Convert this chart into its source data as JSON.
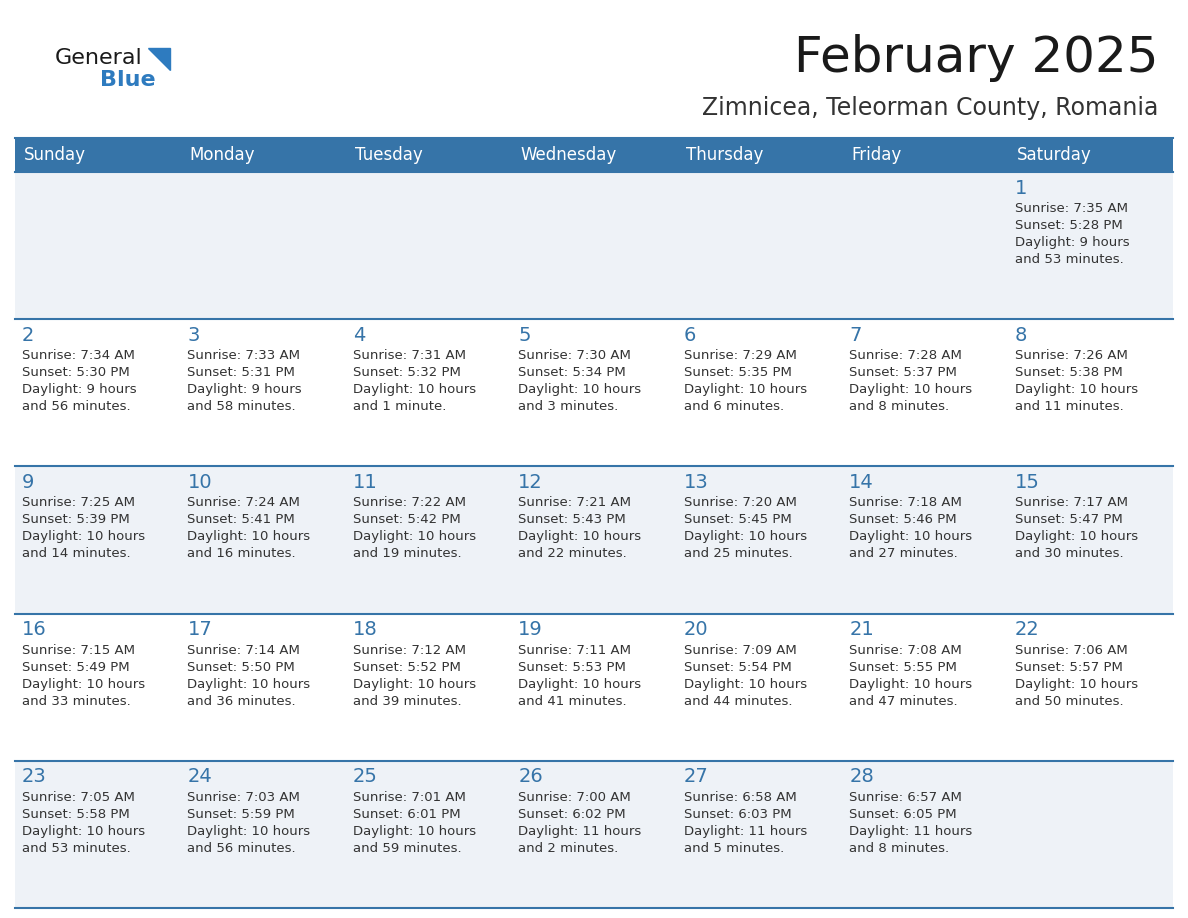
{
  "title": "February 2025",
  "subtitle": "Zimnicea, Teleorman County, Romania",
  "days_of_week": [
    "Sunday",
    "Monday",
    "Tuesday",
    "Wednesday",
    "Thursday",
    "Friday",
    "Saturday"
  ],
  "header_bg": "#3674a8",
  "header_text": "#ffffff",
  "cell_bg_odd": "#eef2f7",
  "cell_bg_white": "#ffffff",
  "border_color": "#3674a8",
  "day_num_color": "#3674a8",
  "text_color": "#333333",
  "title_color": "#1a1a1a",
  "subtitle_color": "#333333",
  "logo_general_color": "#1a1a1a",
  "logo_blue_color": "#2e7bbf",
  "calendar": [
    [
      null,
      null,
      null,
      null,
      null,
      null,
      1
    ],
    [
      2,
      3,
      4,
      5,
      6,
      7,
      8
    ],
    [
      9,
      10,
      11,
      12,
      13,
      14,
      15
    ],
    [
      16,
      17,
      18,
      19,
      20,
      21,
      22
    ],
    [
      23,
      24,
      25,
      26,
      27,
      28,
      null
    ]
  ],
  "cell_data": {
    "1": {
      "sunrise": "7:35 AM",
      "sunset": "5:28 PM",
      "daylight_h": "9 hours",
      "daylight_m": "and 53 minutes."
    },
    "2": {
      "sunrise": "7:34 AM",
      "sunset": "5:30 PM",
      "daylight_h": "9 hours",
      "daylight_m": "and 56 minutes."
    },
    "3": {
      "sunrise": "7:33 AM",
      "sunset": "5:31 PM",
      "daylight_h": "9 hours",
      "daylight_m": "and 58 minutes."
    },
    "4": {
      "sunrise": "7:31 AM",
      "sunset": "5:32 PM",
      "daylight_h": "10 hours",
      "daylight_m": "and 1 minute."
    },
    "5": {
      "sunrise": "7:30 AM",
      "sunset": "5:34 PM",
      "daylight_h": "10 hours",
      "daylight_m": "and 3 minutes."
    },
    "6": {
      "sunrise": "7:29 AM",
      "sunset": "5:35 PM",
      "daylight_h": "10 hours",
      "daylight_m": "and 6 minutes."
    },
    "7": {
      "sunrise": "7:28 AM",
      "sunset": "5:37 PM",
      "daylight_h": "10 hours",
      "daylight_m": "and 8 minutes."
    },
    "8": {
      "sunrise": "7:26 AM",
      "sunset": "5:38 PM",
      "daylight_h": "10 hours",
      "daylight_m": "and 11 minutes."
    },
    "9": {
      "sunrise": "7:25 AM",
      "sunset": "5:39 PM",
      "daylight_h": "10 hours",
      "daylight_m": "and 14 minutes."
    },
    "10": {
      "sunrise": "7:24 AM",
      "sunset": "5:41 PM",
      "daylight_h": "10 hours",
      "daylight_m": "and 16 minutes."
    },
    "11": {
      "sunrise": "7:22 AM",
      "sunset": "5:42 PM",
      "daylight_h": "10 hours",
      "daylight_m": "and 19 minutes."
    },
    "12": {
      "sunrise": "7:21 AM",
      "sunset": "5:43 PM",
      "daylight_h": "10 hours",
      "daylight_m": "and 22 minutes."
    },
    "13": {
      "sunrise": "7:20 AM",
      "sunset": "5:45 PM",
      "daylight_h": "10 hours",
      "daylight_m": "and 25 minutes."
    },
    "14": {
      "sunrise": "7:18 AM",
      "sunset": "5:46 PM",
      "daylight_h": "10 hours",
      "daylight_m": "and 27 minutes."
    },
    "15": {
      "sunrise": "7:17 AM",
      "sunset": "5:47 PM",
      "daylight_h": "10 hours",
      "daylight_m": "and 30 minutes."
    },
    "16": {
      "sunrise": "7:15 AM",
      "sunset": "5:49 PM",
      "daylight_h": "10 hours",
      "daylight_m": "and 33 minutes."
    },
    "17": {
      "sunrise": "7:14 AM",
      "sunset": "5:50 PM",
      "daylight_h": "10 hours",
      "daylight_m": "and 36 minutes."
    },
    "18": {
      "sunrise": "7:12 AM",
      "sunset": "5:52 PM",
      "daylight_h": "10 hours",
      "daylight_m": "and 39 minutes."
    },
    "19": {
      "sunrise": "7:11 AM",
      "sunset": "5:53 PM",
      "daylight_h": "10 hours",
      "daylight_m": "and 41 minutes."
    },
    "20": {
      "sunrise": "7:09 AM",
      "sunset": "5:54 PM",
      "daylight_h": "10 hours",
      "daylight_m": "and 44 minutes."
    },
    "21": {
      "sunrise": "7:08 AM",
      "sunset": "5:55 PM",
      "daylight_h": "10 hours",
      "daylight_m": "and 47 minutes."
    },
    "22": {
      "sunrise": "7:06 AM",
      "sunset": "5:57 PM",
      "daylight_h": "10 hours",
      "daylight_m": "and 50 minutes."
    },
    "23": {
      "sunrise": "7:05 AM",
      "sunset": "5:58 PM",
      "daylight_h": "10 hours",
      "daylight_m": "and 53 minutes."
    },
    "24": {
      "sunrise": "7:03 AM",
      "sunset": "5:59 PM",
      "daylight_h": "10 hours",
      "daylight_m": "and 56 minutes."
    },
    "25": {
      "sunrise": "7:01 AM",
      "sunset": "6:01 PM",
      "daylight_h": "10 hours",
      "daylight_m": "and 59 minutes."
    },
    "26": {
      "sunrise": "7:00 AM",
      "sunset": "6:02 PM",
      "daylight_h": "11 hours",
      "daylight_m": "and 2 minutes."
    },
    "27": {
      "sunrise": "6:58 AM",
      "sunset": "6:03 PM",
      "daylight_h": "11 hours",
      "daylight_m": "and 5 minutes."
    },
    "28": {
      "sunrise": "6:57 AM",
      "sunset": "6:05 PM",
      "daylight_h": "11 hours",
      "daylight_m": "and 8 minutes."
    }
  }
}
